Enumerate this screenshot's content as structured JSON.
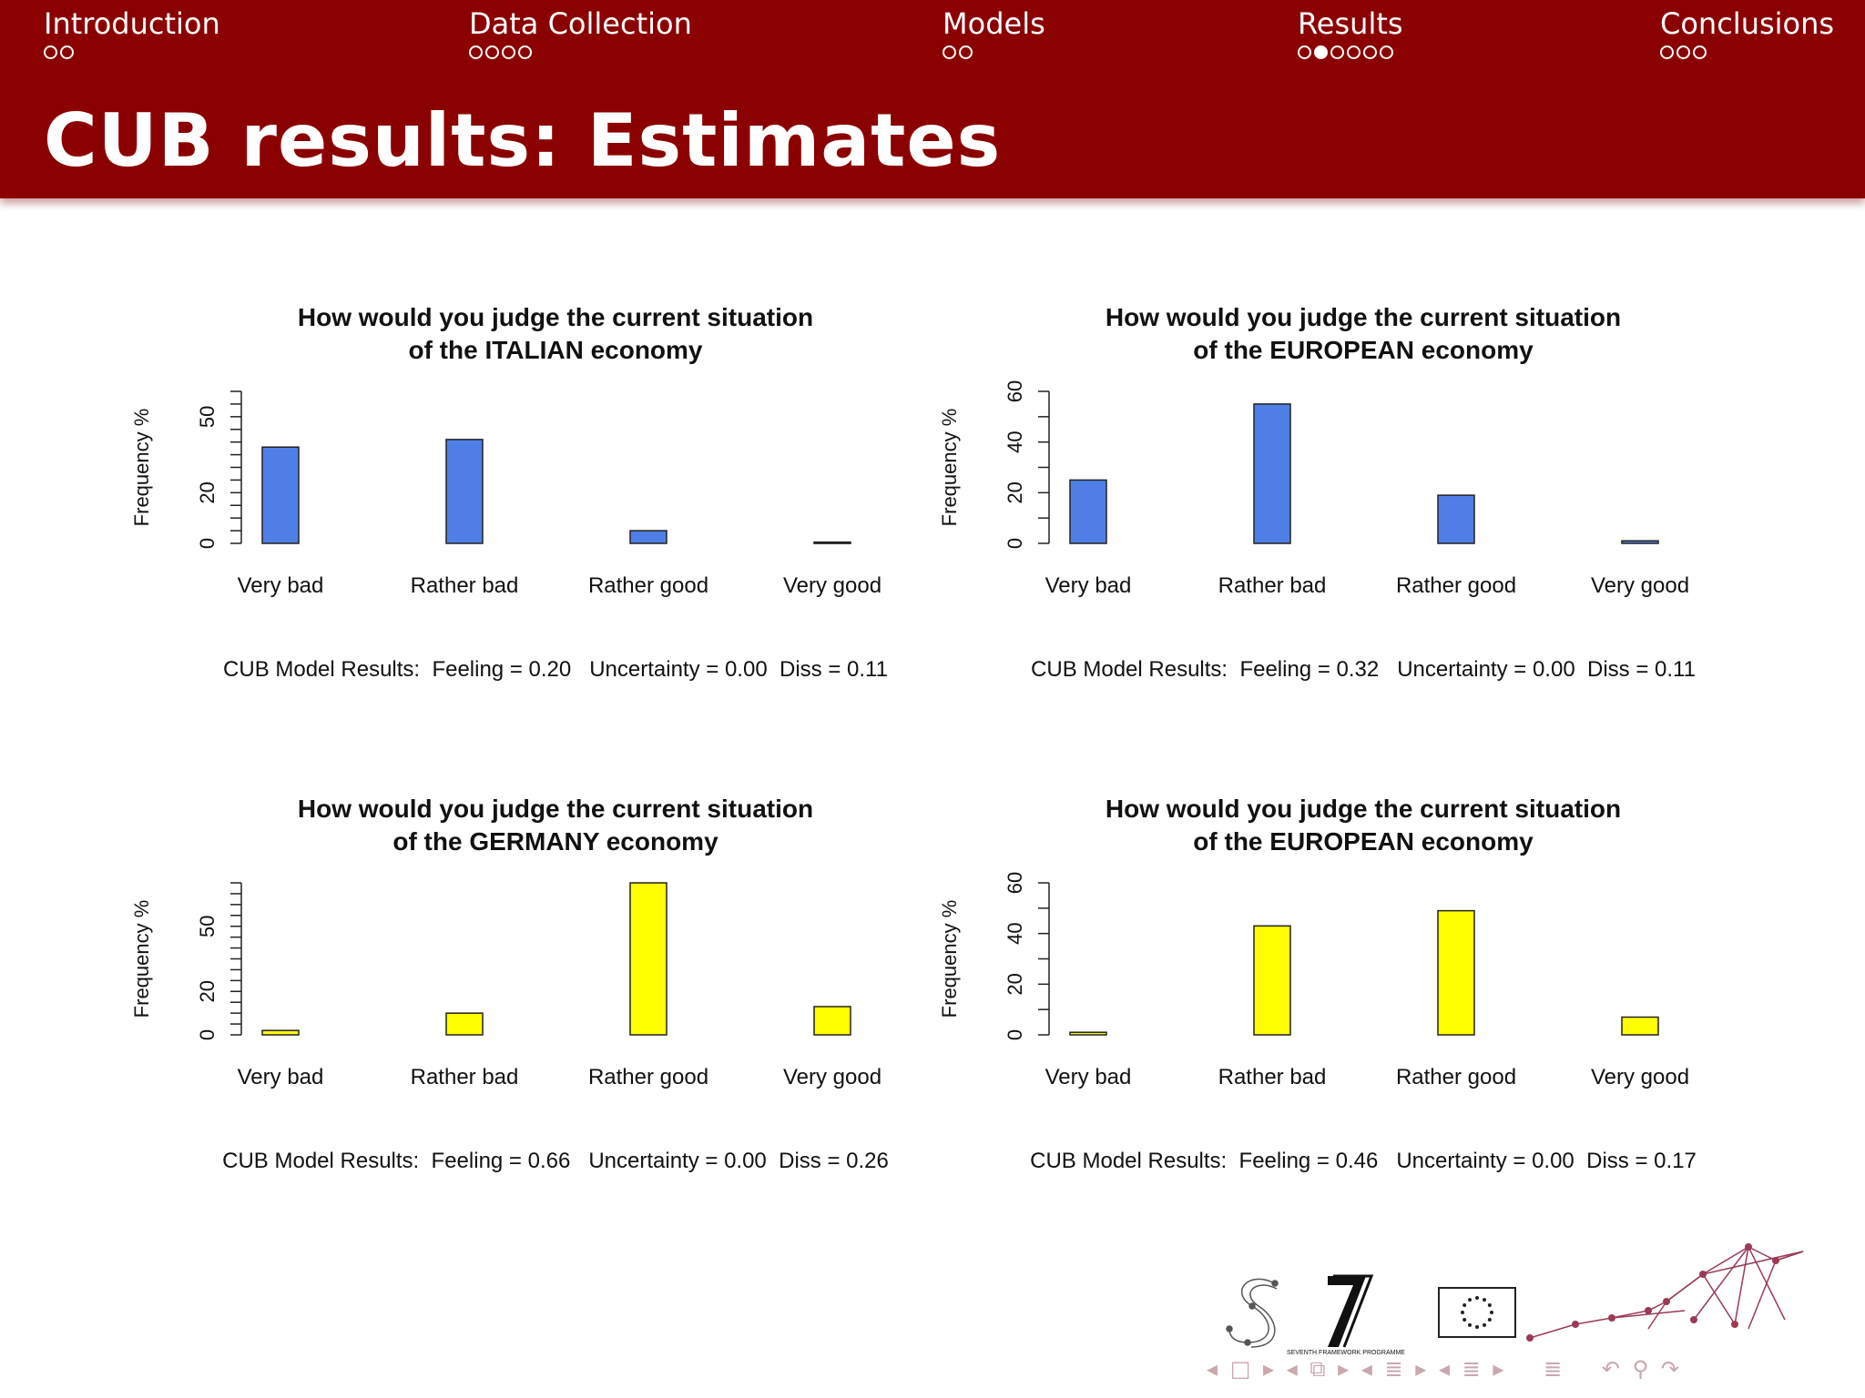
{
  "header": {
    "sections": [
      {
        "label": "Introduction",
        "dots": 2,
        "active": -1
      },
      {
        "label": "Data Collection",
        "dots": 4,
        "active": -1
      },
      {
        "label": "Models",
        "dots": 2,
        "active": -1
      },
      {
        "label": "Results",
        "dots": 6,
        "active": 1
      },
      {
        "label": "Conclusions",
        "dots": 3,
        "active": -1
      }
    ],
    "title": "CUB results:  Estimates"
  },
  "colors": {
    "header_bg": "#8b0000",
    "bar_blue": "#4f7fe6",
    "bar_yellow": "#ffff00"
  },
  "chart_data": [
    {
      "type": "bar",
      "title_lines": [
        "How would you judge the current situation",
        "of the ITALIAN economy"
      ],
      "ylabel": "Frequency %",
      "categories": [
        "Very bad",
        "Rather bad",
        "Rather good",
        "Very good"
      ],
      "values": [
        38,
        41,
        5,
        0.5
      ],
      "ylim": [
        0,
        60
      ],
      "yticks": [
        0,
        20,
        50
      ],
      "ytick_step": 5,
      "color": "#4f7fe6",
      "caption": "CUB Model Results:  Feeling = 0.20   Uncertainty = 0.00  Diss = 0.11"
    },
    {
      "type": "bar",
      "title_lines": [
        "How would you judge the current situation",
        "of the EUROPEAN economy"
      ],
      "ylabel": "Frequency %",
      "categories": [
        "Very bad",
        "Rather bad",
        "Rather good",
        "Very good"
      ],
      "values": [
        25,
        55,
        19,
        1
      ],
      "ylim": [
        0,
        60
      ],
      "yticks": [
        0,
        20,
        40,
        60
      ],
      "ytick_step": 10,
      "color": "#4f7fe6",
      "caption": "CUB Model Results:  Feeling = 0.32   Uncertainty = 0.00  Diss = 0.11"
    },
    {
      "type": "bar",
      "title_lines": [
        "How would you judge the current situation",
        "of the GERMANY economy"
      ],
      "ylabel": "Frequency %",
      "categories": [
        "Very bad",
        "Rather bad",
        "Rather good",
        "Very good"
      ],
      "values": [
        2,
        10,
        70,
        13
      ],
      "ylim": [
        0,
        70
      ],
      "yticks": [
        0,
        20,
        50
      ],
      "ytick_step": 5,
      "color": "#ffff00",
      "caption": "CUB Model Results:  Feeling = 0.66   Uncertainty = 0.00  Diss = 0.26"
    },
    {
      "type": "bar",
      "title_lines": [
        "How would you judge the current situation",
        "of the EUROPEAN economy"
      ],
      "ylabel": "Frequency %",
      "categories": [
        "Very bad",
        "Rather bad",
        "Rather good",
        "Very good"
      ],
      "values": [
        1,
        43,
        49,
        7
      ],
      "ylim": [
        0,
        60
      ],
      "yticks": [
        0,
        20,
        40,
        60
      ],
      "ytick_step": 10,
      "color": "#ffff00",
      "caption": "CUB Model Results:  Feeling = 0.46   Uncertainty = 0.00  Diss = 0.17"
    }
  ],
  "footer": {
    "logos": [
      "s-network-logo",
      "fp7-seventh-framework-logo",
      "eu-flag-logo",
      "network-graph-decoration"
    ],
    "fp7_text": "SEVENTH FRAMEWORK PROGRAMME",
    "nav_icons": [
      "arrow-left-icon",
      "frame-icon",
      "arrow-right-icon",
      "arrow-left-icon",
      "subsection-icon",
      "arrow-right-icon",
      "arrow-left-icon",
      "section-icon",
      "arrow-right-icon",
      "arrow-left-icon",
      "toc-icon",
      "arrow-right-icon",
      "appendix-icon",
      "back-icon",
      "search-icon",
      "forward-icon"
    ]
  }
}
